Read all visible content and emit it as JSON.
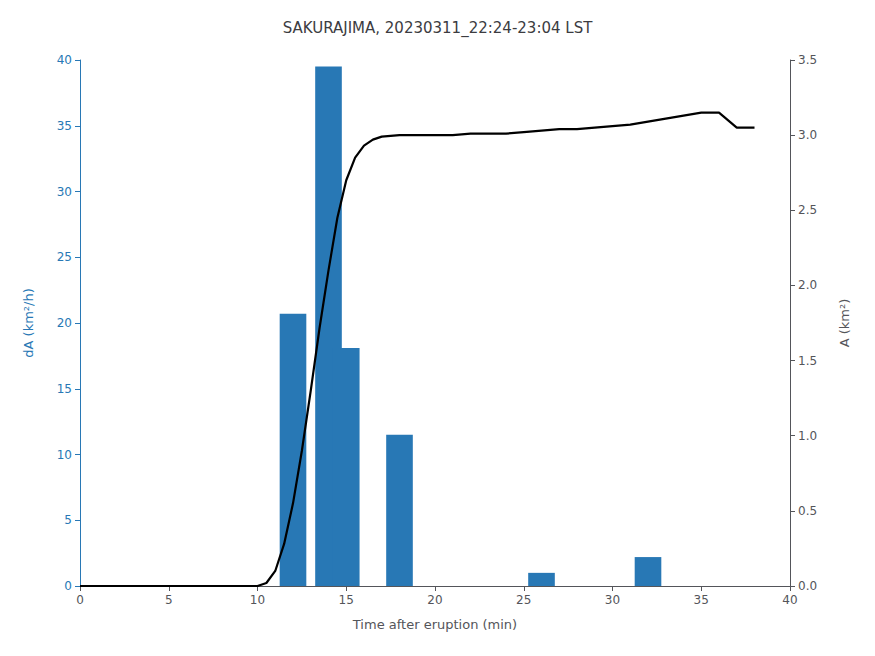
{
  "chart_data": {
    "type": "bar",
    "title": "SAKURAJIMA, 20230311_22:24-23:04 LST",
    "xlabel": "Time after eruption (min)",
    "ylabel": "dA (km²/h)",
    "y2label": "A (km²)",
    "series": [
      {
        "type": "bar",
        "color": "#2878b5",
        "x": [
          12,
          14,
          15,
          18,
          26,
          32
        ],
        "values": [
          20.7,
          39.5,
          18.1,
          11.5,
          1.0,
          2.2
        ]
      },
      {
        "type": "line",
        "color": "#000000",
        "axis": "y2",
        "x": [
          0,
          5,
          10,
          10.5,
          11,
          11.5,
          12,
          12.5,
          13,
          13.5,
          14,
          14.5,
          15,
          15.5,
          16,
          16.5,
          17,
          18,
          19,
          20,
          21,
          22,
          23,
          24,
          25,
          26,
          27,
          28,
          29,
          30,
          31,
          32,
          33,
          34,
          35,
          36,
          37,
          38
        ],
        "values": [
          0.0,
          0.0,
          0.0,
          0.02,
          0.1,
          0.28,
          0.55,
          0.9,
          1.3,
          1.72,
          2.1,
          2.45,
          2.7,
          2.85,
          2.93,
          2.97,
          2.99,
          3.0,
          3.0,
          3.0,
          3.0,
          3.01,
          3.01,
          3.01,
          3.02,
          3.03,
          3.04,
          3.04,
          3.05,
          3.06,
          3.07,
          3.09,
          3.11,
          3.13,
          3.15,
          3.15,
          3.05,
          3.05
        ]
      }
    ],
    "xlim": [
      0,
      40
    ],
    "xticks": [
      0,
      5,
      10,
      15,
      20,
      25,
      30,
      35,
      40
    ],
    "ylim": [
      0,
      40
    ],
    "yticks": [
      0,
      5,
      10,
      15,
      20,
      25,
      30,
      35,
      40
    ],
    "y2lim": [
      0,
      3.5
    ],
    "y2ticks": [
      {
        "value": 0,
        "label": "0.0"
      },
      0.5,
      {
        "value": 1,
        "label": "1.0"
      },
      1.5,
      {
        "value": 2,
        "label": "2.0"
      },
      2.5,
      {
        "value": 3,
        "label": "3.0"
      },
      3.5
    ],
    "grid": false
  }
}
